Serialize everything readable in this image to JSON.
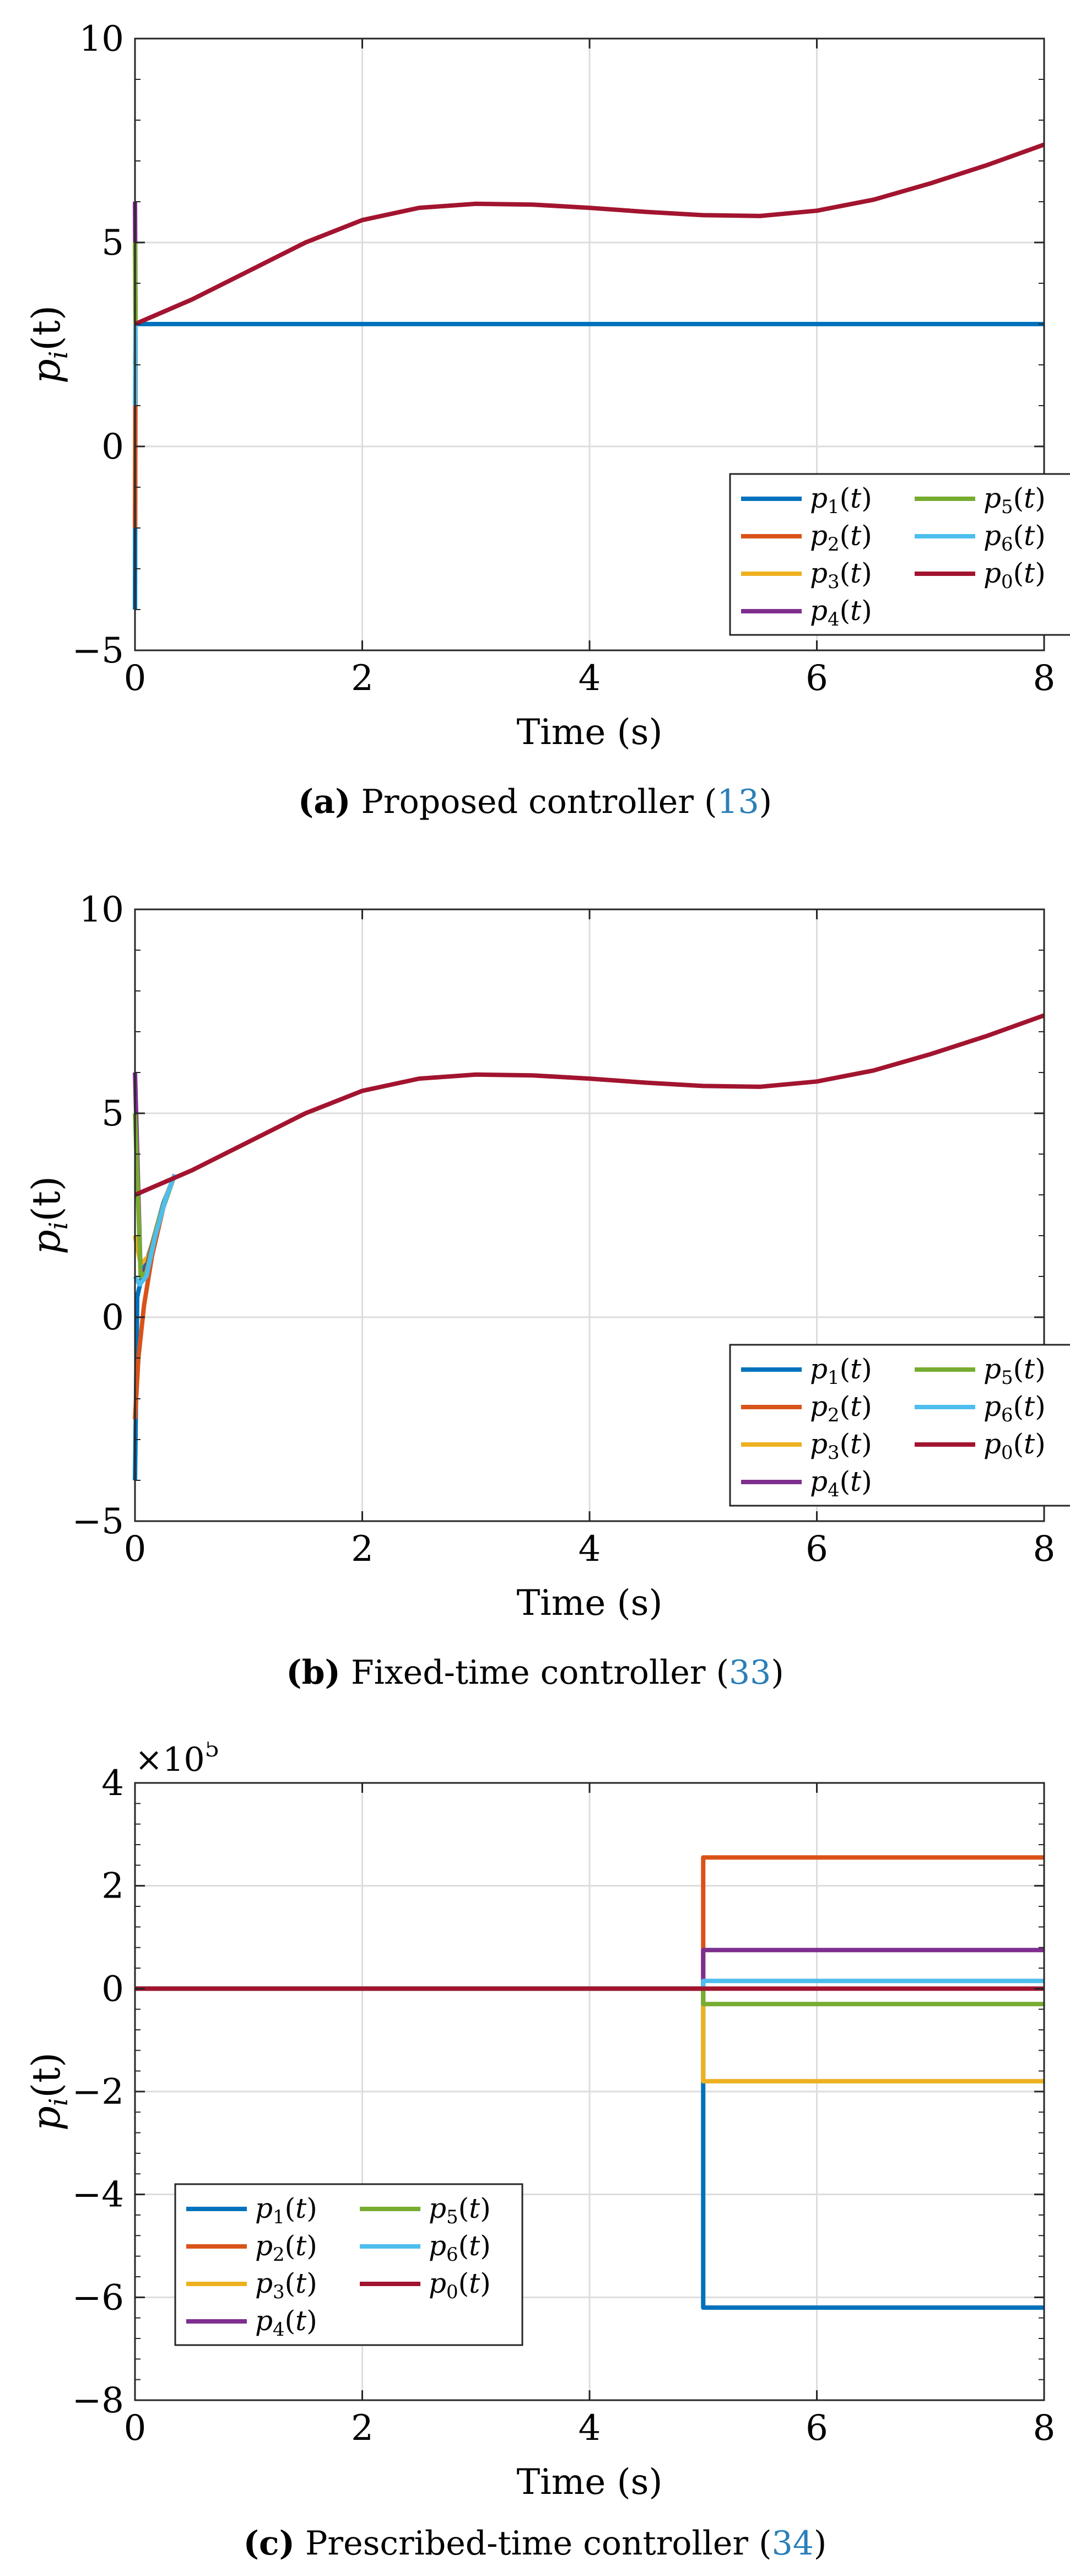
{
  "colors": {
    "p1": "#0072BD",
    "p2": "#D95319",
    "p3": "#EDB120",
    "p4": "#7E2F8E",
    "p5": "#77AC30",
    "p6": "#4DBEEE",
    "p0": "#A2142F",
    "caption_ref": "#2a7fb8",
    "grid": "#dddddd"
  },
  "chart_data": [
    {
      "type": "line",
      "id": "a",
      "title": "",
      "xlabel": "Time (s)",
      "ylabel": "p_i(t)",
      "ylabel_base": "p",
      "ylabel_sub": "i",
      "ylabel_rest": "(t)",
      "xlim": [
        0,
        8
      ],
      "ylim": [
        -5,
        10
      ],
      "xticks": [
        0,
        2,
        4,
        6,
        8
      ],
      "xtick_labels": [
        "0",
        "2",
        "4",
        "6",
        "8"
      ],
      "yticks": [
        -5,
        0,
        5,
        10
      ],
      "ytick_labels": [
        "−5",
        "0",
        "5",
        "10"
      ],
      "grid": true,
      "legend_placement": "bottom-right",
      "caption": {
        "label": "(a)",
        "text": " Proposed controller (",
        "ref": "13",
        "close": ")"
      },
      "series": [
        {
          "name": "p₁(t)",
          "sub": "1",
          "color_key": "p1",
          "points": [
            [
              0,
              -4
            ],
            [
              0.005,
              3
            ],
            [
              8,
              3
            ]
          ]
        },
        {
          "name": "p₂(t)",
          "sub": "2",
          "color_key": "p2",
          "points": [
            [
              0,
              -2
            ],
            [
              0.005,
              3
            ]
          ]
        },
        {
          "name": "p₃(t)",
          "sub": "3",
          "color_key": "p3",
          "points": [
            [
              0,
              2
            ],
            [
              0.005,
              3
            ]
          ]
        },
        {
          "name": "p₄(t)",
          "sub": "4",
          "color_key": "p4",
          "points": [
            [
              0,
              6
            ],
            [
              0.005,
              3
            ]
          ]
        },
        {
          "name": "p₅(t)",
          "sub": "5",
          "color_key": "p5",
          "points": [
            [
              0,
              5
            ],
            [
              0.005,
              3
            ]
          ]
        },
        {
          "name": "p₆(t)",
          "sub": "6",
          "color_key": "p6",
          "points": [
            [
              0,
              1
            ],
            [
              0.005,
              3
            ]
          ]
        },
        {
          "name": "p₀(t)",
          "sub": "0",
          "color_key": "p0",
          "points": [
            [
              0,
              3
            ],
            [
              0.5,
              3.6
            ],
            [
              1,
              4.3
            ],
            [
              1.5,
              5
            ],
            [
              2,
              5.55
            ],
            [
              2.5,
              5.85
            ],
            [
              3,
              5.95
            ],
            [
              3.5,
              5.93
            ],
            [
              4,
              5.85
            ],
            [
              4.5,
              5.75
            ],
            [
              5,
              5.67
            ],
            [
              5.5,
              5.65
            ],
            [
              6,
              5.78
            ],
            [
              6.5,
              6.05
            ],
            [
              7,
              6.45
            ],
            [
              7.5,
              6.9
            ],
            [
              8,
              7.4
            ]
          ]
        }
      ]
    },
    {
      "type": "line",
      "id": "b",
      "title": "",
      "xlabel": "Time (s)",
      "ylabel": "p_i(t)",
      "ylabel_base": "p",
      "ylabel_sub": "i",
      "ylabel_rest": "(t)",
      "xlim": [
        0,
        8
      ],
      "ylim": [
        -5,
        10
      ],
      "xticks": [
        0,
        2,
        4,
        6,
        8
      ],
      "xtick_labels": [
        "0",
        "2",
        "4",
        "6",
        "8"
      ],
      "yticks": [
        -5,
        0,
        5,
        10
      ],
      "ytick_labels": [
        "−5",
        "0",
        "5",
        "10"
      ],
      "grid": true,
      "legend_placement": "bottom-right",
      "caption": {
        "label": "(b)",
        "text": " Fixed-time controller (",
        "ref": "33",
        "close": ")"
      },
      "series": [
        {
          "name": "p₁(t)",
          "sub": "1",
          "color_key": "p1",
          "points": [
            [
              0,
              -4
            ],
            [
              0.02,
              0.5
            ],
            [
              0.06,
              1
            ],
            [
              0.15,
              1.8
            ],
            [
              0.25,
              2.8
            ],
            [
              0.35,
              3.5
            ]
          ]
        },
        {
          "name": "p₂(t)",
          "sub": "2",
          "color_key": "p2",
          "points": [
            [
              0,
              -2.5
            ],
            [
              0.03,
              -1
            ],
            [
              0.08,
              0.3
            ],
            [
              0.15,
              1.5
            ],
            [
              0.25,
              2.7
            ],
            [
              0.35,
              3.5
            ]
          ]
        },
        {
          "name": "p₃(t)",
          "sub": "3",
          "color_key": "p3",
          "points": [
            [
              0,
              2
            ],
            [
              0.05,
              1.3
            ],
            [
              0.12,
              1.5
            ],
            [
              0.2,
              2.3
            ],
            [
              0.28,
              3
            ],
            [
              0.35,
              3.5
            ]
          ]
        },
        {
          "name": "p₄(t)",
          "sub": "4",
          "color_key": "p4",
          "points": [
            [
              0,
              6
            ],
            [
              0.02,
              4
            ],
            [
              0.05,
              1
            ],
            [
              0.1,
              1.2
            ],
            [
              0.2,
              2.3
            ],
            [
              0.35,
              3.5
            ]
          ]
        },
        {
          "name": "p₅(t)",
          "sub": "5",
          "color_key": "p5",
          "points": [
            [
              0,
              5
            ],
            [
              0.02,
              3.5
            ],
            [
              0.05,
              1
            ],
            [
              0.1,
              1.1
            ],
            [
              0.2,
              2.3
            ],
            [
              0.35,
              3.5
            ]
          ]
        },
        {
          "name": "p₆(t)",
          "sub": "6",
          "color_key": "p6",
          "points": [
            [
              0,
              1
            ],
            [
              0.04,
              0.8
            ],
            [
              0.1,
              1
            ],
            [
              0.18,
              2
            ],
            [
              0.27,
              2.9
            ],
            [
              0.35,
              3.5
            ]
          ]
        },
        {
          "name": "p₀(t)",
          "sub": "0",
          "color_key": "p0",
          "points": [
            [
              0,
              3
            ],
            [
              0.5,
              3.6
            ],
            [
              1,
              4.3
            ],
            [
              1.5,
              5
            ],
            [
              2,
              5.55
            ],
            [
              2.5,
              5.85
            ],
            [
              3,
              5.95
            ],
            [
              3.5,
              5.93
            ],
            [
              4,
              5.85
            ],
            [
              4.5,
              5.75
            ],
            [
              5,
              5.67
            ],
            [
              5.5,
              5.65
            ],
            [
              6,
              5.78
            ],
            [
              6.5,
              6.05
            ],
            [
              7,
              6.45
            ],
            [
              7.5,
              6.9
            ],
            [
              8,
              7.4
            ]
          ]
        }
      ]
    },
    {
      "type": "line",
      "id": "c",
      "title": "",
      "xlabel": "Time (s)",
      "ylabel": "p_i(t)",
      "ylabel_base": "p",
      "ylabel_sub": "i",
      "ylabel_rest": "(t)",
      "xlim": [
        0,
        8
      ],
      "ylim": [
        -8,
        4
      ],
      "multiplier": {
        "base": "×10",
        "exp": "5"
      },
      "xticks": [
        0,
        2,
        4,
        6,
        8
      ],
      "xtick_labels": [
        "0",
        "2",
        "4",
        "6",
        "8"
      ],
      "yticks": [
        -8,
        -6,
        -4,
        -2,
        0,
        2,
        4
      ],
      "ytick_labels": [
        "−8",
        "−6",
        "−4",
        "−2",
        "0",
        "2",
        "4"
      ],
      "grid": true,
      "legend_placement": "bottom-left",
      "caption": {
        "label": "(c)",
        "text": " Prescribed-time controller (",
        "ref": "34",
        "close": ")"
      },
      "series": [
        {
          "name": "p₁(t)",
          "sub": "1",
          "color_key": "p1",
          "points": [
            [
              0,
              0
            ],
            [
              5,
              0
            ],
            [
              5,
              -6.2
            ],
            [
              8,
              -6.2
            ]
          ]
        },
        {
          "name": "p₂(t)",
          "sub": "2",
          "color_key": "p2",
          "points": [
            [
              0,
              0
            ],
            [
              5,
              0
            ],
            [
              5,
              2.55
            ],
            [
              8,
              2.55
            ]
          ]
        },
        {
          "name": "p₃(t)",
          "sub": "3",
          "color_key": "p3",
          "points": [
            [
              0,
              0
            ],
            [
              5,
              0
            ],
            [
              5,
              -1.8
            ],
            [
              8,
              -1.8
            ]
          ]
        },
        {
          "name": "p₄(t)",
          "sub": "4",
          "color_key": "p4",
          "points": [
            [
              0,
              0
            ],
            [
              5,
              0
            ],
            [
              5,
              0.75
            ],
            [
              8,
              0.75
            ]
          ]
        },
        {
          "name": "p₅(t)",
          "sub": "5",
          "color_key": "p5",
          "points": [
            [
              0,
              0
            ],
            [
              5,
              0
            ],
            [
              5,
              -0.3
            ],
            [
              8,
              -0.3
            ]
          ]
        },
        {
          "name": "p₆(t)",
          "sub": "6",
          "color_key": "p6",
          "points": [
            [
              0,
              0
            ],
            [
              5,
              0
            ],
            [
              5,
              0.15
            ],
            [
              8,
              0.15
            ]
          ]
        },
        {
          "name": "p₀(t)",
          "sub": "0",
          "color_key": "p0",
          "points": [
            [
              0,
              0
            ],
            [
              8,
              0
            ]
          ]
        }
      ]
    }
  ]
}
